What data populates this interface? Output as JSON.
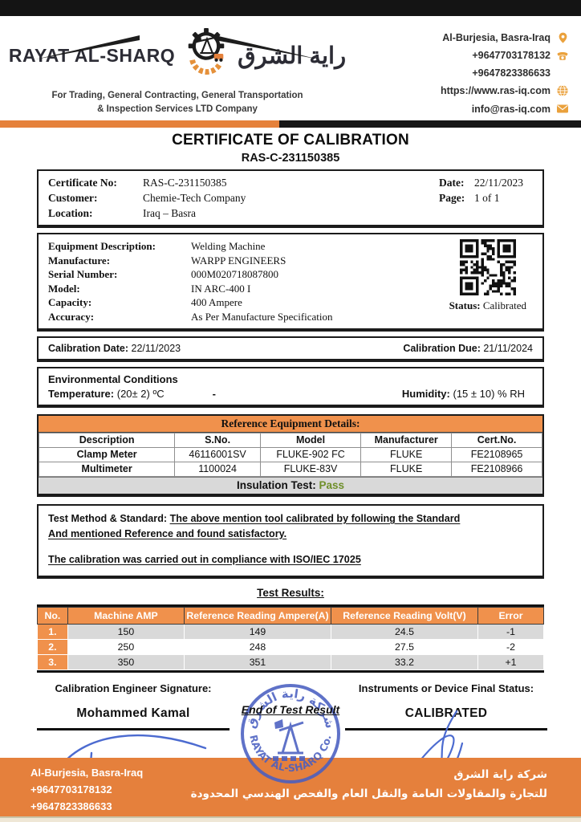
{
  "header": {
    "brand": {
      "name_en": "RAYAT AL-SHARQ",
      "name_ar": "راية الشرق",
      "tagline_line1": "For Trading, General Contracting, General Transportation",
      "tagline_line2": "& Inspection Services LTD Company"
    },
    "contact": {
      "address": "Al-Burjesia, Basra-Iraq",
      "phone1": "+9647703178132",
      "phone2": "+9647823386633",
      "website": "https://www.ras-iq.com",
      "email": "info@ras-iq.com"
    }
  },
  "title": {
    "main": "CERTIFICATE OF CALIBRATION",
    "number": "RAS-C-231150385"
  },
  "certificate_info": {
    "cert_no_label": "Certificate No:",
    "cert_no": "RAS-C-231150385",
    "customer_label": "Customer:",
    "customer": "Chemie-Tech Company",
    "location_label": "Location:",
    "location": "Iraq – Basra",
    "date_label": "Date:",
    "date": "22/11/2023",
    "page_label": "Page:",
    "page": "1 of 1"
  },
  "equipment": {
    "rows": [
      {
        "label": "Equipment Description:",
        "value": "Welding Machine"
      },
      {
        "label": "Manufacture:",
        "value": "WARPP ENGINEERS"
      },
      {
        "label": "Serial Number:",
        "value": "000M020718087800"
      },
      {
        "label": "Model:",
        "value": "IN ARC-400 I"
      },
      {
        "label": "Capacity:",
        "value": "400 Ampere"
      },
      {
        "label": "Accuracy:",
        "value": "As Per Manufacture Specification"
      }
    ],
    "status_label": "Status:",
    "status_value": "Calibrated"
  },
  "calibration": {
    "date_label": "Calibration Date:",
    "date": "22/11/2023",
    "due_label": "Calibration Due:",
    "due": "21/11/2024"
  },
  "environment": {
    "title": "Environmental Conditions",
    "temp_label": "Temperature:",
    "temp_value": "(20± 2) ºC",
    "dash": "-",
    "humidity_label": "Humidity:",
    "humidity_value": "(15 ± 10) % RH"
  },
  "reference_table": {
    "title": "Reference Equipment Details:",
    "headers": [
      "Description",
      "S.No.",
      "Model",
      "Manufacturer",
      "Cert.No."
    ],
    "rows": [
      [
        "Clamp Meter",
        "46116001SV",
        "FLUKE-902 FC",
        "FLUKE",
        "FE2108965"
      ],
      [
        "Multimeter",
        "1100024",
        "FLUKE-83V",
        "FLUKE",
        "FE2108966"
      ]
    ],
    "insulation_label": "Insulation Test",
    "insulation_value": "Pass"
  },
  "method": {
    "prefix": "Test Method & Standard: ",
    "underlined_1": "The above mention tool calibrated by following the Standard",
    "underlined_2": " And mentioned Reference and found satisfactory.",
    "underlined_3": "The calibration was carried out in compliance with ISO/IEC 17025"
  },
  "test_results": {
    "heading": "Test Results:",
    "headers": [
      "No.",
      "Machine AMP",
      "Reference Reading Ampere(A)",
      "Reference Reading Volt(V)",
      "Error"
    ],
    "rows": [
      [
        "1.",
        "150",
        "149",
        "24.5",
        "-1"
      ],
      [
        "2.",
        "250",
        "248",
        "27.5",
        "-2"
      ],
      [
        "3.",
        "350",
        "351",
        "33.2",
        "+1"
      ]
    ]
  },
  "signatures": {
    "engineer_label": "Calibration Engineer Signature:",
    "engineer_name": "Mohammed Kamal",
    "center_note": "End of Test Result",
    "status_label": "Instruments or Device Final Status:",
    "status_value": "CALIBRATED",
    "stamp_top_ar": "شركة راية الشرق",
    "stamp_bottom_en": "RAYAT AL-SHARQ Co."
  },
  "footer": {
    "address": "Al-Burjesia, Basra-Iraq",
    "phone1": "+9647703178132",
    "phone2": "+9647823386633",
    "company_ar": "شركة راية الشرق",
    "company_desc_ar": "للتجارة والمقاولات العامة والنقل العام والفحص الهندسي المحدودة"
  },
  "colors": {
    "accent_orange": "#E5813B",
    "table_header_orange": "#F0914C",
    "icon_gold": "#EAA13C",
    "pass_green": "#6F8F2A",
    "stamp_blue": "#4A5FC1",
    "signature_blue": "#4C6BD0",
    "row_gray": "#D9D9D9",
    "footer_orange": "#E5803C"
  }
}
